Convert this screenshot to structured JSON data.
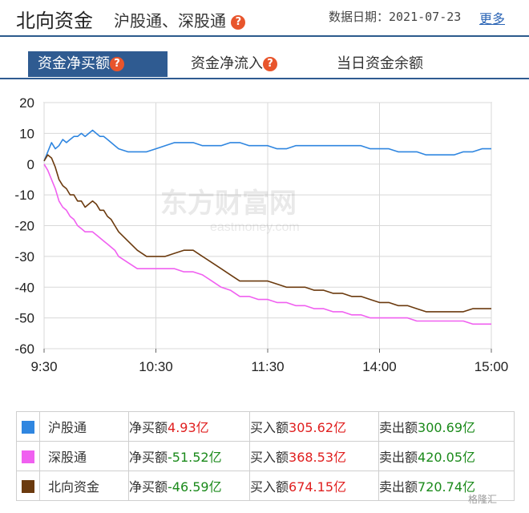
{
  "header": {
    "title": "北向资金",
    "subtitle": "沪股通、深股通",
    "date_label": "数据日期：2021-07-23",
    "more_label": "更多"
  },
  "tabs": [
    {
      "label": "资金净买额",
      "active": true,
      "help": "?"
    },
    {
      "label": "资金净流入",
      "active": false,
      "help": "?"
    },
    {
      "label": "当日资金余额",
      "active": false
    }
  ],
  "watermark": {
    "chart_text": "东方财富网",
    "chart_sub": "eastmoney.com",
    "corner": "格隆汇"
  },
  "chart_data": {
    "type": "line",
    "ylim": [
      -60,
      20
    ],
    "yticks": [
      "20",
      "10",
      "0",
      "-10",
      "-20",
      "-30",
      "-40",
      "-50",
      "-60"
    ],
    "xticks": [
      "9:30",
      "10:30",
      "11:30",
      "14:00",
      "15:00"
    ],
    "grid": true,
    "series": [
      {
        "name": "沪股通",
        "color": "#2f86e0",
        "x": [
          0,
          2,
          4,
          6,
          8,
          10,
          12,
          14,
          16,
          18,
          20,
          22,
          24,
          26,
          28,
          30,
          32,
          34,
          36,
          38,
          40,
          45,
          50,
          55,
          60,
          65,
          70,
          75,
          80,
          85,
          90,
          95,
          100,
          105,
          110,
          115,
          120,
          125,
          130,
          135,
          140,
          145,
          150,
          155,
          160,
          165,
          170,
          175,
          180,
          185,
          190,
          195,
          200,
          205,
          210,
          215,
          220,
          225,
          230,
          235,
          240
        ],
        "values": [
          1,
          4,
          7,
          5,
          6,
          8,
          7,
          8,
          9,
          9,
          10,
          9,
          10,
          11,
          10,
          9,
          9,
          8,
          7,
          6,
          5,
          4,
          4,
          4,
          5,
          6,
          7,
          7,
          7,
          6,
          6,
          6,
          7,
          7,
          6,
          6,
          6,
          5,
          5,
          6,
          6,
          6,
          6,
          6,
          6,
          6,
          6,
          5,
          5,
          5,
          4,
          4,
          4,
          3,
          3,
          3,
          3,
          4,
          4,
          5,
          5
        ]
      },
      {
        "name": "深股通",
        "color": "#f060f0",
        "x": [
          0,
          2,
          4,
          6,
          8,
          10,
          12,
          14,
          16,
          18,
          20,
          22,
          24,
          26,
          28,
          30,
          32,
          34,
          36,
          38,
          40,
          45,
          50,
          55,
          60,
          65,
          70,
          75,
          80,
          85,
          90,
          95,
          100,
          105,
          110,
          115,
          120,
          125,
          130,
          135,
          140,
          145,
          150,
          155,
          160,
          165,
          170,
          175,
          180,
          185,
          190,
          195,
          200,
          205,
          210,
          215,
          220,
          225,
          230,
          235,
          240
        ],
        "values": [
          0,
          -2,
          -5,
          -8,
          -12,
          -14,
          -15,
          -17,
          -18,
          -20,
          -21,
          -22,
          -22,
          -22,
          -23,
          -24,
          -25,
          -26,
          -27,
          -28,
          -30,
          -32,
          -34,
          -34,
          -34,
          -34,
          -34,
          -35,
          -35,
          -36,
          -38,
          -40,
          -41,
          -43,
          -43,
          -44,
          -44,
          -45,
          -45,
          -46,
          -46,
          -47,
          -47,
          -48,
          -48,
          -49,
          -49,
          -50,
          -50,
          -50,
          -50,
          -50,
          -51,
          -51,
          -51,
          -51,
          -51,
          -51,
          -52,
          -52,
          -52
        ]
      },
      {
        "name": "北向资金",
        "color": "#6b3a0e",
        "x": [
          0,
          2,
          4,
          6,
          8,
          10,
          12,
          14,
          16,
          18,
          20,
          22,
          24,
          26,
          28,
          30,
          32,
          34,
          36,
          38,
          40,
          45,
          50,
          55,
          60,
          65,
          70,
          75,
          80,
          85,
          90,
          95,
          100,
          105,
          110,
          115,
          120,
          125,
          130,
          135,
          140,
          145,
          150,
          155,
          160,
          165,
          170,
          175,
          180,
          185,
          190,
          195,
          200,
          205,
          210,
          215,
          220,
          225,
          230,
          235,
          240
        ],
        "values": [
          1,
          3,
          2,
          -1,
          -5,
          -7,
          -8,
          -10,
          -10,
          -12,
          -12,
          -14,
          -13,
          -12,
          -13,
          -15,
          -15,
          -17,
          -18,
          -20,
          -22,
          -25,
          -28,
          -30,
          -30,
          -30,
          -29,
          -28,
          -28,
          -30,
          -32,
          -34,
          -36,
          -38,
          -38,
          -38,
          -38,
          -39,
          -40,
          -40,
          -40,
          -41,
          -41,
          -42,
          -42,
          -43,
          -43,
          -44,
          -45,
          -45,
          -46,
          -46,
          -47,
          -48,
          -48,
          -48,
          -48,
          -48,
          -47,
          -47,
          -47
        ]
      }
    ]
  },
  "legend": [
    {
      "name": "沪股通",
      "color": "#2f86e0",
      "net_label": "净买额",
      "net_value": "4.93亿",
      "net_dir": "up",
      "buy_label": "买入额",
      "buy_value": "305.62亿",
      "sell_label": "卖出额",
      "sell_value": "300.69亿"
    },
    {
      "name": "深股通",
      "color": "#f060f0",
      "net_label": "净买额",
      "net_value": "-51.52亿",
      "net_dir": "down",
      "buy_label": "买入额",
      "buy_value": "368.53亿",
      "sell_label": "卖出额",
      "sell_value": "420.05亿"
    },
    {
      "name": "北向资金",
      "color": "#6b3a0e",
      "net_label": "净买额",
      "net_value": "-46.59亿",
      "net_dir": "down",
      "buy_label": "买入额",
      "buy_value": "674.15亿",
      "sell_label": "卖出额",
      "sell_value": "720.74亿"
    }
  ]
}
